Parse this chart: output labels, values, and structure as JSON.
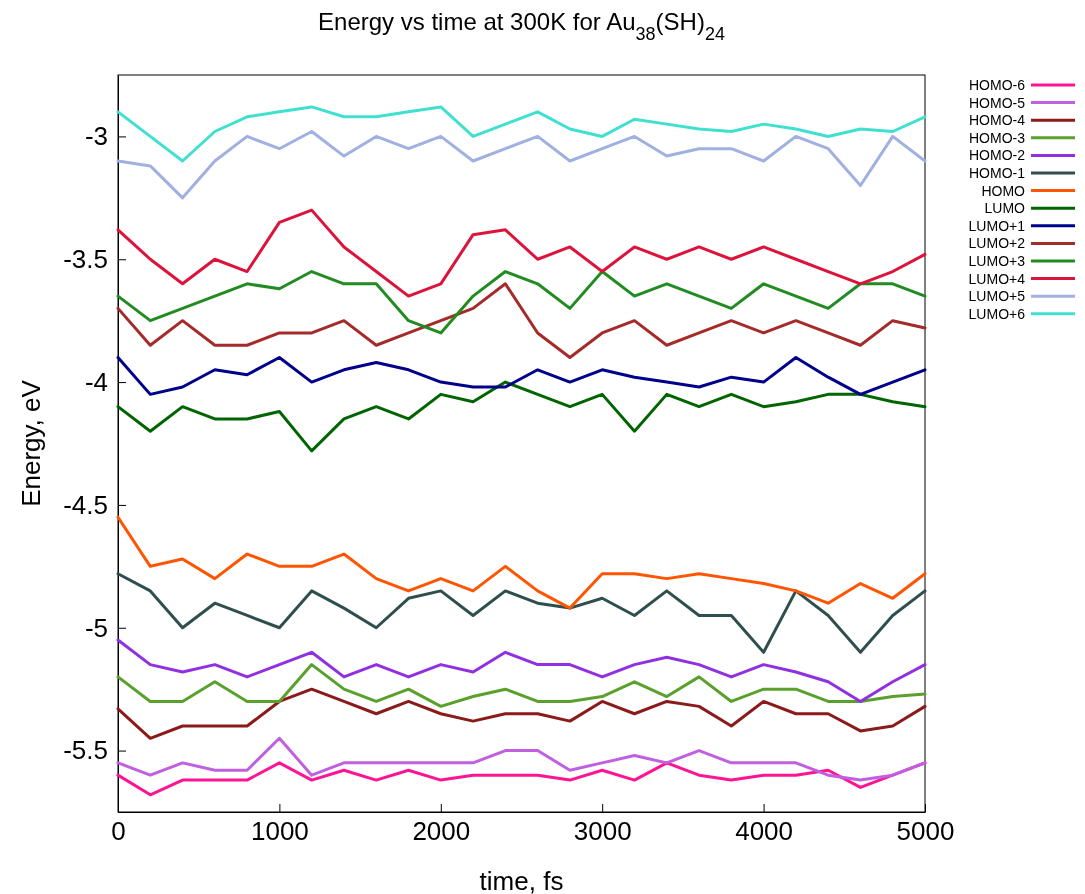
{
  "chart_data": {
    "type": "line",
    "title": "Energy vs time at 300K for Au$_{38}$(SH)$_{24}$",
    "xlabel": "time, fs",
    "ylabel": "Energy, eV",
    "xlim": [
      0,
      5000
    ],
    "ylim": [
      -5.75,
      -2.75
    ],
    "xticks": [
      0,
      1000,
      2000,
      3000,
      4000,
      5000
    ],
    "yticks": [
      -5.5,
      -5,
      -4.5,
      -4,
      -3.5,
      -3
    ],
    "grid": false,
    "legend": "top right",
    "marker": "none",
    "line_style": "solid",
    "x": [
      0,
      200,
      400,
      600,
      800,
      1000,
      1200,
      1400,
      1600,
      1800,
      2000,
      2200,
      2400,
      2600,
      2800,
      3000,
      3200,
      3400,
      3600,
      3800,
      4000,
      4200,
      4400,
      4600,
      4800,
      5000
    ],
    "series": [
      {
        "name": "HOMO-6",
        "color": "#ff1493",
        "values": [
          -5.6,
          -5.68,
          -5.62,
          -5.62,
          -5.62,
          -5.55,
          -5.62,
          -5.58,
          -5.62,
          -5.58,
          -5.62,
          -5.6,
          -5.6,
          -5.6,
          -5.62,
          -5.58,
          -5.62,
          -5.55,
          -5.6,
          -5.62,
          -5.6,
          -5.6,
          -5.58,
          -5.65,
          -5.6,
          -5.55
        ]
      },
      {
        "name": "HOMO-5",
        "color": "#c060e0",
        "values": [
          -5.55,
          -5.6,
          -5.55,
          -5.58,
          -5.58,
          -5.45,
          -5.6,
          -5.55,
          -5.55,
          -5.55,
          -5.55,
          -5.55,
          -5.5,
          -5.5,
          -5.58,
          -5.55,
          -5.52,
          -5.55,
          -5.5,
          -5.55,
          -5.55,
          -5.55,
          -5.6,
          -5.62,
          -5.6,
          -5.55
        ]
      },
      {
        "name": "HOMO-4",
        "color": "#8b1a1a",
        "values": [
          -5.33,
          -5.45,
          -5.4,
          -5.4,
          -5.4,
          -5.3,
          -5.25,
          -5.3,
          -5.35,
          -5.3,
          -5.35,
          -5.38,
          -5.35,
          -5.35,
          -5.38,
          -5.3,
          -5.35,
          -5.3,
          -5.32,
          -5.4,
          -5.3,
          -5.35,
          -5.35,
          -5.42,
          -5.4,
          -5.32
        ]
      },
      {
        "name": "HOMO-3",
        "color": "#5aa02c",
        "values": [
          -5.2,
          -5.3,
          -5.3,
          -5.22,
          -5.3,
          -5.3,
          -5.15,
          -5.25,
          -5.3,
          -5.25,
          -5.32,
          -5.28,
          -5.25,
          -5.3,
          -5.3,
          -5.28,
          -5.22,
          -5.28,
          -5.2,
          -5.3,
          -5.25,
          -5.25,
          -5.3,
          -5.3,
          -5.28,
          -5.27
        ]
      },
      {
        "name": "HOMO-2",
        "color": "#9030e0",
        "values": [
          -5.05,
          -5.15,
          -5.18,
          -5.15,
          -5.2,
          -5.15,
          -5.1,
          -5.2,
          -5.15,
          -5.2,
          -5.15,
          -5.18,
          -5.1,
          -5.15,
          -5.15,
          -5.2,
          -5.15,
          -5.12,
          -5.15,
          -5.2,
          -5.15,
          -5.18,
          -5.22,
          -5.3,
          -5.22,
          -5.15
        ]
      },
      {
        "name": "HOMO-1",
        "color": "#2f4f4f",
        "values": [
          -4.78,
          -4.85,
          -5.0,
          -4.9,
          -4.95,
          -5.0,
          -4.85,
          -4.92,
          -5.0,
          -4.88,
          -4.85,
          -4.95,
          -4.85,
          -4.9,
          -4.92,
          -4.88,
          -4.95,
          -4.85,
          -4.95,
          -4.95,
          -5.1,
          -4.85,
          -4.95,
          -5.1,
          -4.95,
          -4.85
        ]
      },
      {
        "name": "HOMO",
        "color": "#ff5500",
        "values": [
          -4.55,
          -4.75,
          -4.72,
          -4.8,
          -4.7,
          -4.75,
          -4.75,
          -4.7,
          -4.8,
          -4.85,
          -4.8,
          -4.85,
          -4.75,
          -4.85,
          -4.92,
          -4.78,
          -4.78,
          -4.8,
          -4.78,
          -4.8,
          -4.82,
          -4.85,
          -4.9,
          -4.82,
          -4.88,
          -4.78
        ]
      },
      {
        "name": "LUMO",
        "color": "#006400",
        "values": [
          -4.1,
          -4.2,
          -4.1,
          -4.15,
          -4.15,
          -4.12,
          -4.28,
          -4.15,
          -4.1,
          -4.15,
          -4.05,
          -4.08,
          -4.0,
          -4.05,
          -4.1,
          -4.05,
          -4.2,
          -4.05,
          -4.1,
          -4.05,
          -4.1,
          -4.08,
          -4.05,
          -4.05,
          -4.08,
          -4.1
        ]
      },
      {
        "name": "LUMO+1",
        "color": "#00008b",
        "values": [
          -3.9,
          -4.05,
          -4.02,
          -3.95,
          -3.97,
          -3.9,
          -4.0,
          -3.95,
          -3.92,
          -3.95,
          -4.0,
          -4.02,
          -4.02,
          -3.95,
          -4.0,
          -3.95,
          -3.98,
          -4.0,
          -4.02,
          -3.98,
          -4.0,
          -3.9,
          -3.98,
          -4.05,
          -4.0,
          -3.95
        ]
      },
      {
        "name": "LUMO+2",
        "color": "#a52a2a",
        "values": [
          -3.7,
          -3.85,
          -3.75,
          -3.85,
          -3.85,
          -3.8,
          -3.8,
          -3.75,
          -3.85,
          -3.8,
          -3.75,
          -3.7,
          -3.6,
          -3.8,
          -3.9,
          -3.8,
          -3.75,
          -3.85,
          -3.8,
          -3.75,
          -3.8,
          -3.75,
          -3.8,
          -3.85,
          -3.75,
          -3.78
        ]
      },
      {
        "name": "LUMO+3",
        "color": "#228b22",
        "values": [
          -3.65,
          -3.75,
          -3.7,
          -3.65,
          -3.6,
          -3.62,
          -3.55,
          -3.6,
          -3.6,
          -3.75,
          -3.8,
          -3.65,
          -3.55,
          -3.6,
          -3.7,
          -3.55,
          -3.65,
          -3.6,
          -3.65,
          -3.7,
          -3.6,
          -3.65,
          -3.7,
          -3.6,
          -3.6,
          -3.65
        ]
      },
      {
        "name": "LUMO+4",
        "color": "#dc143c",
        "values": [
          -3.38,
          -3.5,
          -3.6,
          -3.5,
          -3.55,
          -3.35,
          -3.3,
          -3.45,
          -3.55,
          -3.65,
          -3.6,
          -3.4,
          -3.38,
          -3.5,
          -3.45,
          -3.55,
          -3.45,
          -3.5,
          -3.45,
          -3.5,
          -3.45,
          -3.5,
          -3.55,
          -3.6,
          -3.55,
          -3.48
        ]
      },
      {
        "name": "LUMO+5",
        "color": "#a0b0e0",
        "values": [
          -3.1,
          -3.12,
          -3.25,
          -3.1,
          -3.0,
          -3.05,
          -2.98,
          -3.08,
          -3.0,
          -3.05,
          -3.0,
          -3.1,
          -3.05,
          -3.0,
          -3.1,
          -3.05,
          -3.0,
          -3.08,
          -3.05,
          -3.05,
          -3.1,
          -3.0,
          -3.05,
          -3.2,
          -3.0,
          -3.1
        ]
      },
      {
        "name": "LUMO+6",
        "color": "#40e0d0",
        "values": [
          -2.9,
          -3.0,
          -3.1,
          -2.98,
          -2.92,
          -2.9,
          -2.88,
          -2.92,
          -2.92,
          -2.9,
          -2.88,
          -3.0,
          -2.95,
          -2.9,
          -2.97,
          -3.0,
          -2.93,
          -2.95,
          -2.97,
          -2.98,
          -2.95,
          -2.97,
          -3.0,
          -2.97,
          -2.98,
          -2.92
        ]
      }
    ]
  }
}
